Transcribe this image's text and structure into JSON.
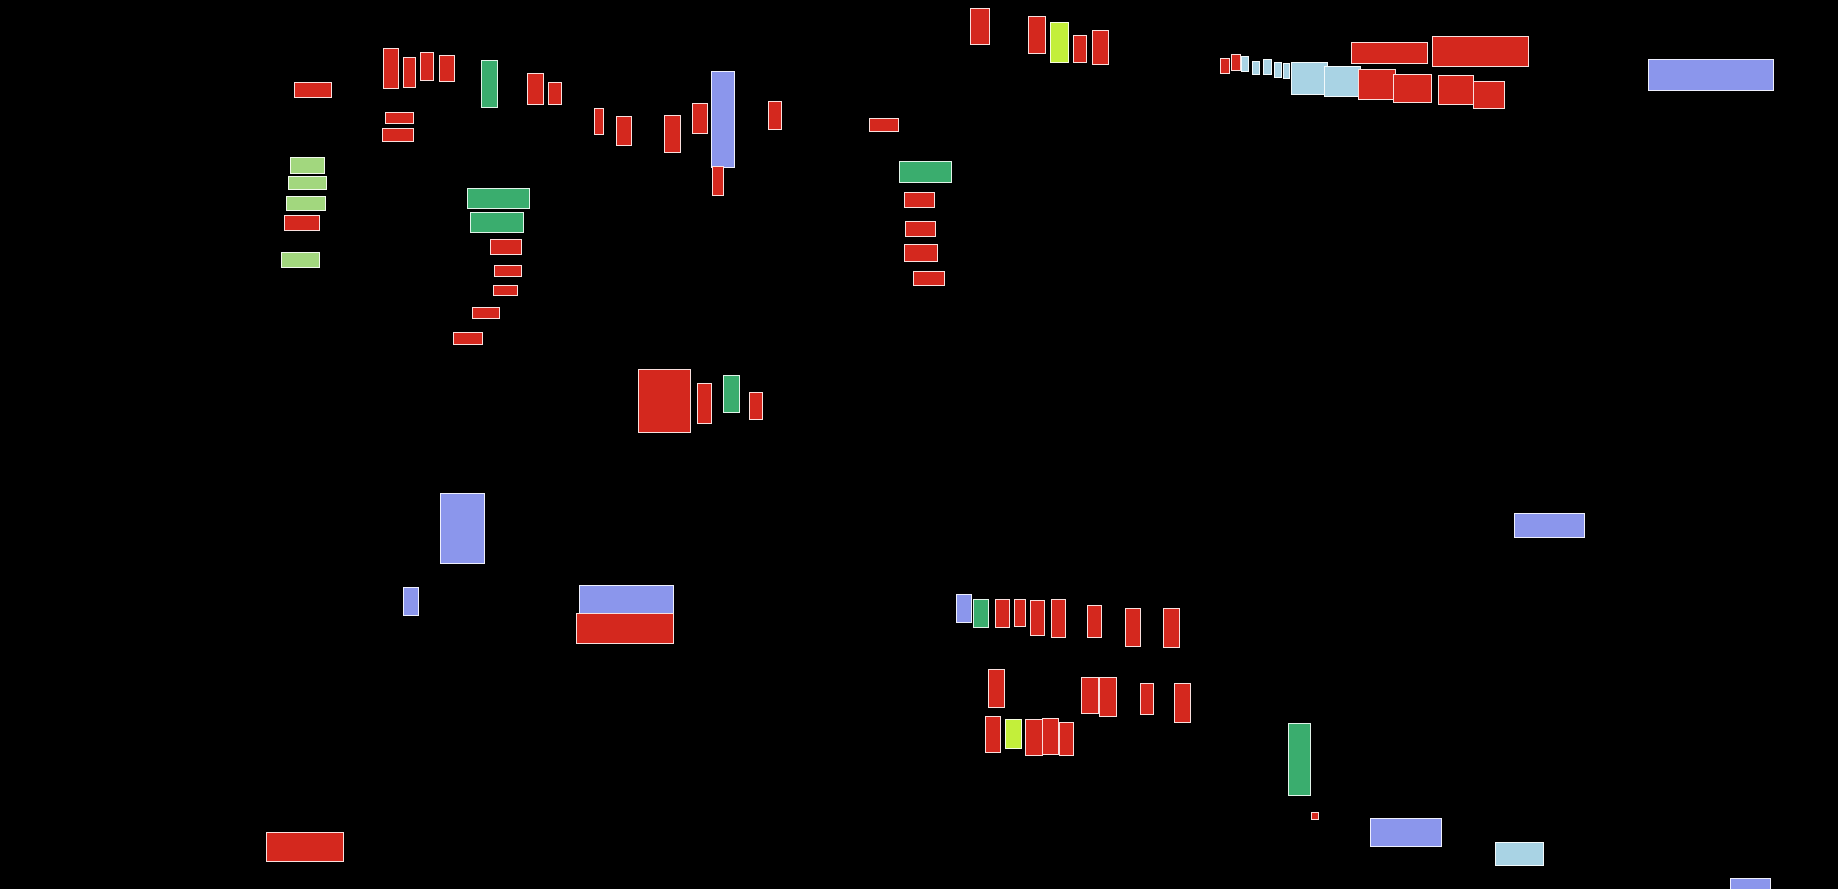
{
  "background": "#000000",
  "categories": {
    "red": "#d4281e",
    "blue": "#8b96ec",
    "green": "#3aad6e",
    "lightgreen": "#a2d77e",
    "lime": "#c3ef3a",
    "paleblue": "#a9d3e4"
  },
  "outline_color": "#ffffff",
  "block_order": [
    "red",
    "red",
    "red",
    "red",
    "red",
    "green",
    "red",
    "red",
    "red",
    "red",
    "lightgreen",
    "lightgreen",
    "lightgreen",
    "red",
    "lightgreen",
    "green",
    "green",
    "red",
    "red",
    "red",
    "red",
    "red",
    "red",
    "red",
    "red",
    "red",
    "blue",
    "red",
    "red",
    "red",
    "red",
    "lime",
    "red",
    "red",
    "red",
    "green",
    "red",
    "red",
    "red",
    "red",
    "red",
    "red",
    "green",
    "red",
    "red",
    "red",
    "paleblue",
    "paleblue",
    "paleblue",
    "paleblue",
    "paleblue",
    "paleblue",
    "paleblue",
    "red",
    "red",
    "red",
    "red",
    "red",
    "red",
    "blue",
    "blue",
    "blue",
    "blue",
    "red",
    "blue",
    "blue",
    "green",
    "red",
    "red",
    "red",
    "red",
    "red",
    "red",
    "red",
    "red",
    "red",
    "red",
    "red",
    "red",
    "red",
    "lime",
    "red",
    "red",
    "red",
    "red",
    "red",
    "blue",
    "paleblue",
    "blue",
    "green",
    "green",
    "blue"
  ]
}
